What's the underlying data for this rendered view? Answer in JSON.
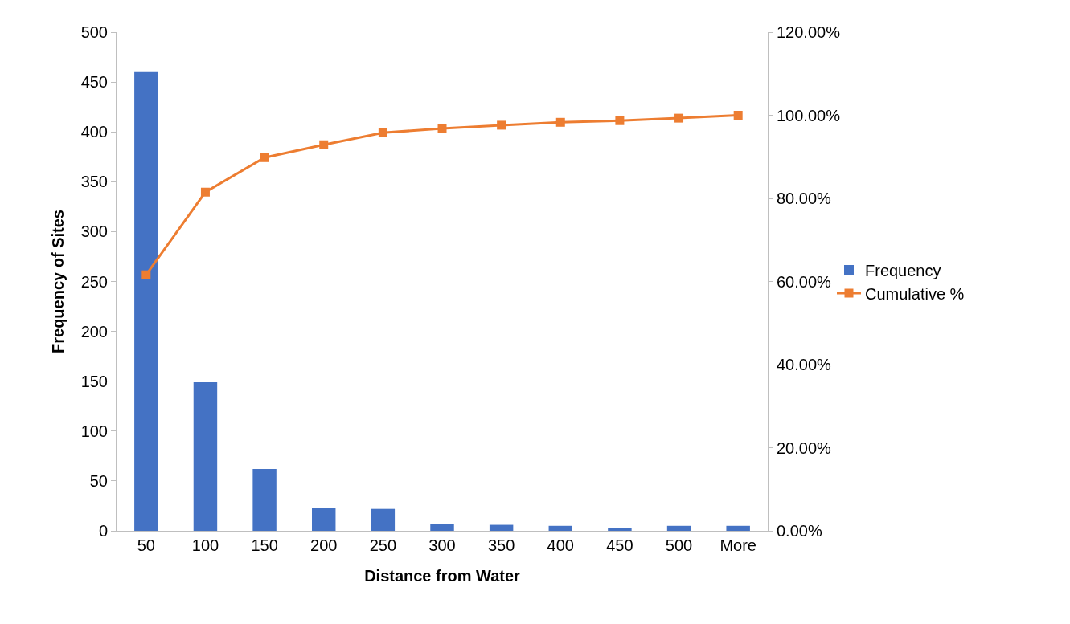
{
  "chart_data": {
    "type": "bar",
    "xlabel": "Distance from Water",
    "ylabel": "Frequency of Sites",
    "categories": [
      "50",
      "100",
      "150",
      "200",
      "250",
      "300",
      "350",
      "400",
      "450",
      "500",
      "More"
    ],
    "series": [
      {
        "name": "Frequency",
        "color": "#4472c4",
        "values": [
          460,
          149,
          62,
          23,
          22,
          7,
          6,
          5,
          3,
          5,
          5
        ]
      },
      {
        "name": "Cumulative %",
        "type": "line",
        "axis": "y2",
        "color": "#ed7d31",
        "marker": "square",
        "values": [
          61.6,
          81.5,
          89.8,
          92.9,
          95.8,
          96.8,
          97.6,
          98.3,
          98.7,
          99.3,
          100
        ]
      }
    ],
    "ylim": [
      0,
      500
    ],
    "yticks": [
      0,
      50,
      100,
      150,
      200,
      250,
      300,
      350,
      400,
      450,
      500
    ],
    "y2lim": [
      0,
      120
    ],
    "y2ticks": [
      {
        "value": 0,
        "label": "0.00%"
      },
      {
        "value": 20,
        "label": "20.00%"
      },
      {
        "value": 40,
        "label": "40.00%"
      },
      {
        "value": 60,
        "label": "60.00%"
      },
      {
        "value": 80,
        "label": "80.00%"
      },
      {
        "value": 100,
        "label": "100.00%"
      },
      {
        "value": 120,
        "label": "120.00%"
      }
    ],
    "grid": false,
    "legend": "right"
  }
}
